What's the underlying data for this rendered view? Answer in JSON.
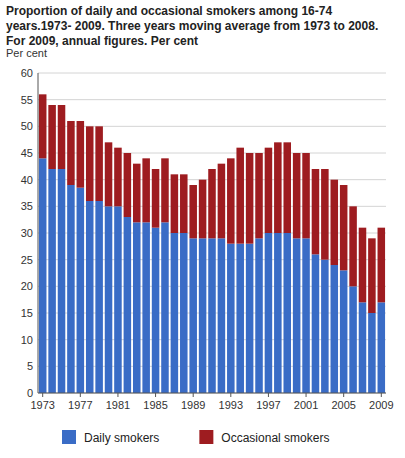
{
  "chart_data": {
    "type": "bar",
    "stacked": true,
    "grid": true,
    "legend": "bottom",
    "title": "Proportion of daily and occasional smokers among  16-74 years.1973- 2009.  Three years moving average from 1973 to 2008. For 2009, annual figures. Per cent",
    "y_label": "Per cent",
    "categories": [
      "1973",
      null,
      null,
      null,
      "1977",
      null,
      null,
      null,
      "1981",
      null,
      null,
      null,
      "1985",
      null,
      null,
      null,
      "1989",
      null,
      null,
      null,
      "1993",
      null,
      null,
      null,
      "1997",
      null,
      null,
      null,
      "2001",
      null,
      null,
      null,
      "2005",
      null,
      null,
      null,
      "2009"
    ],
    "series": [
      {
        "name": "Daily smokers",
        "color": "#3a6cc6",
        "values": [
          44,
          42,
          42,
          39,
          38.5,
          36,
          36,
          35,
          35,
          33,
          32,
          32,
          31,
          32,
          30,
          30,
          29,
          29,
          29,
          29,
          28,
          28,
          28,
          29,
          30,
          30,
          30,
          29,
          29,
          26,
          25,
          24,
          23,
          20,
          17,
          15,
          17
        ]
      },
      {
        "name": "Occasional smokers",
        "color": "#9e1c20",
        "values": [
          12,
          12,
          12,
          12,
          12.5,
          14,
          14,
          12,
          11,
          12,
          11,
          12,
          11,
          12,
          11,
          11,
          10,
          11,
          13,
          14,
          16,
          18,
          17,
          16,
          16,
          17,
          17,
          16,
          16,
          16,
          17,
          16,
          16,
          15,
          14,
          14,
          14
        ]
      }
    ],
    "ylim": [
      0,
      60
    ],
    "yticks": [
      0,
      5,
      10,
      15,
      20,
      25,
      30,
      35,
      40,
      45,
      50,
      55,
      60
    ]
  }
}
